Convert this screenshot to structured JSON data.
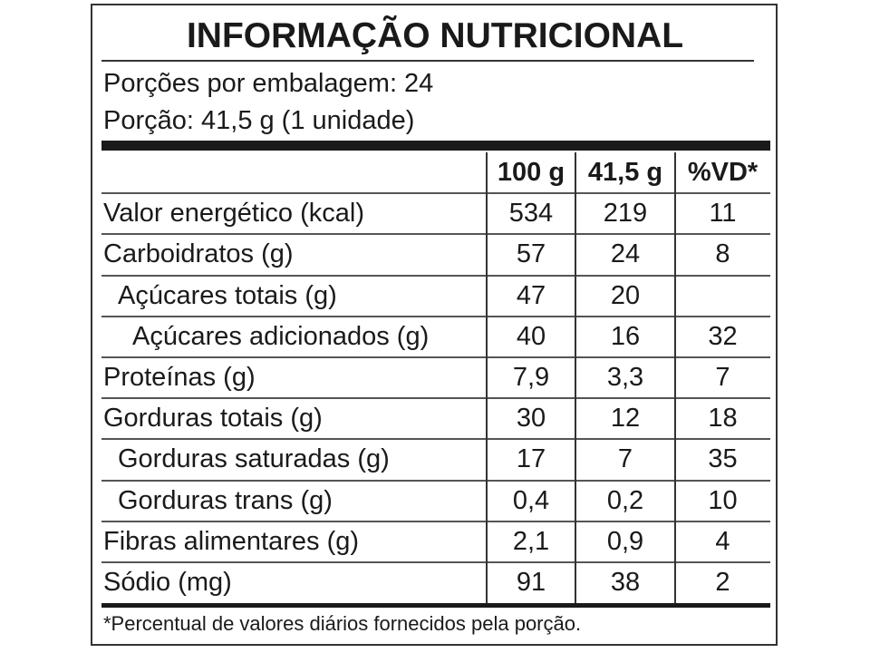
{
  "title": "INFORMAÇÃO NUTRICIONAL",
  "servings_per_package": "Porções por embalagem: 24",
  "serving_size": "Porção: 41,5 g (1 unidade)",
  "table": {
    "header": [
      "100 g",
      "41,5 g",
      "%VD*"
    ],
    "rows": [
      [
        "Valor energético (kcal)",
        "534",
        "219",
        "11"
      ],
      [
        "Carboidratos (g)",
        "57",
        "24",
        "8"
      ],
      [
        "Açúcares totais (g)",
        "47",
        "20",
        null
      ],
      [
        "Açúcares adicionados (g)",
        "40",
        "16",
        "32"
      ],
      [
        "Proteínas (g)",
        "7,9",
        "3,3",
        "7"
      ],
      [
        "Gorduras totais (g)",
        "30",
        "12",
        "18"
      ],
      [
        "Gorduras saturadas (g)",
        "17",
        "7",
        "35"
      ],
      [
        "Gorduras trans (g)",
        "0,4",
        "0,2",
        "10"
      ],
      [
        "Fibras alimentares (g)",
        "2,1",
        "0,9",
        "4"
      ],
      [
        "Sódio (mg)",
        "91",
        "38",
        "2"
      ]
    ]
  },
  "footnote": "*Percentual de valores diários fornecidos pela porção."
}
